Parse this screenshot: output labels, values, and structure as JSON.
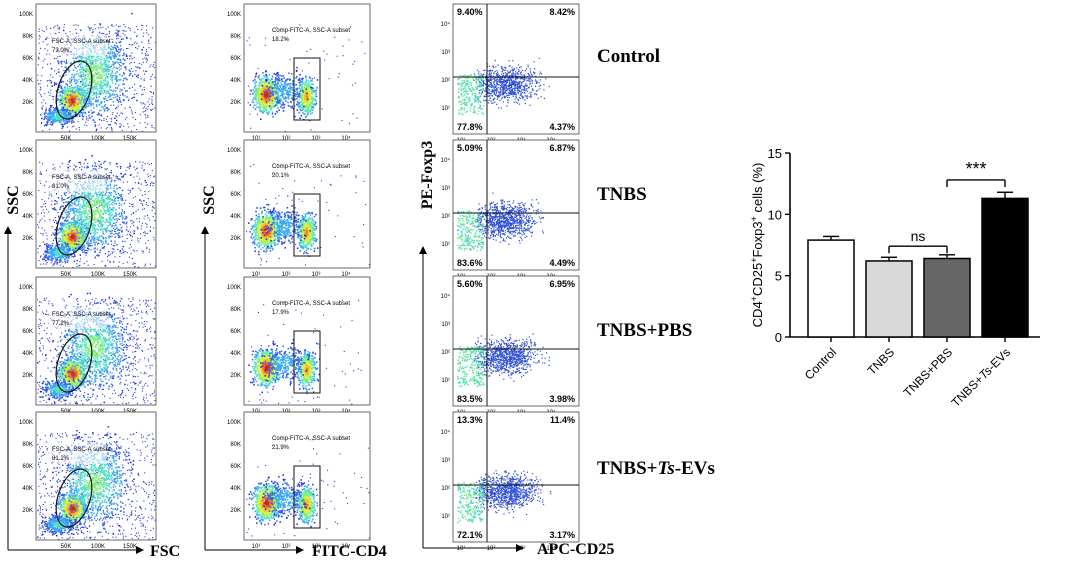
{
  "panels": {
    "col1": {
      "x_label": "FSC",
      "y_label": "SSC",
      "x_ticks": [
        "50K",
        "100K",
        "150K"
      ],
      "y_ticks": [
        "100K",
        "80K",
        "60K",
        "40K",
        "20K"
      ],
      "gates": [
        {
          "name": "FSC-A, SSC-A subset",
          "percent": "73.0%"
        },
        {
          "name": "FSC-A, SSC-A subset",
          "percent": "81.0%"
        },
        {
          "name": "FSC-A, SSC-A subset",
          "percent": "77.2%"
        },
        {
          "name": "FSC-A, SSC-A subset",
          "percent": "81.2%"
        }
      ]
    },
    "col2": {
      "x_label": "FITC-CD4",
      "y_label": "SSC",
      "x_ticks": [
        "10¹",
        "10²",
        "10³",
        "10⁴"
      ],
      "y_ticks": [
        "100K",
        "80K",
        "60K",
        "40K",
        "20K"
      ],
      "gates": [
        {
          "name": "Comp-FITC-A, SSC-A subset",
          "percent": "18.2%"
        },
        {
          "name": "Comp-FITC-A, SSC-A subset",
          "percent": "20.1%"
        },
        {
          "name": "Comp-FITC-A, SSC-A subset",
          "percent": "17.9%"
        },
        {
          "name": "Comp-FITC-A, SSC-A subset",
          "percent": "21.9%"
        }
      ]
    },
    "col3": {
      "x_label": "APC-CD25",
      "y_label": "PE-Foxp3",
      "x_ticks": [
        "10¹",
        "10²",
        "10³",
        "10⁴"
      ],
      "y_ticks": [
        "10⁴",
        "10³",
        "10²",
        "10¹"
      ],
      "quadrants": [
        {
          "group": "Control",
          "ul": "9.40%",
          "ur": "8.42%",
          "ll": "77.8%",
          "lr": "4.37%"
        },
        {
          "group": "TNBS",
          "ul": "5.09%",
          "ur": "6.87%",
          "ll": "83.6%",
          "lr": "4.49%"
        },
        {
          "group": "TNBS+PBS",
          "ul": "5.60%",
          "ur": "6.95%",
          "ll": "83.5%",
          "lr": "3.98%"
        },
        {
          "group": "TNBS+Ts-EVs",
          "ul": "13.3%",
          "ur": "11.4%",
          "ll": "72.1%",
          "lr": "3.17%"
        }
      ]
    }
  },
  "row_labels": [
    {
      "prefix": "Control",
      "italic": "",
      "suffix": ""
    },
    {
      "prefix": "TNBS",
      "italic": "",
      "suffix": ""
    },
    {
      "prefix": "TNBS+PBS",
      "italic": "",
      "suffix": ""
    },
    {
      "prefix": "TNBS+",
      "italic": "Ts",
      "suffix": "-EVs"
    }
  ],
  "chart_data": {
    "type": "bar",
    "categories": [
      "Control",
      "TNBS",
      "TNBS+PBS",
      "TNBS+Ts-EVs"
    ],
    "category_parts": [
      {
        "prefix": "Control",
        "italic": "",
        "suffix": ""
      },
      {
        "prefix": "TNBS",
        "italic": "",
        "suffix": ""
      },
      {
        "prefix": "TNBS+PBS",
        "italic": "",
        "suffix": ""
      },
      {
        "prefix": "TNBS+",
        "italic": "Ts",
        "suffix": "-EVs"
      }
    ],
    "values": [
      7.9,
      6.2,
      6.4,
      11.3
    ],
    "errors": [
      0.3,
      0.3,
      0.3,
      0.5
    ],
    "bar_colors": [
      "#ffffff",
      "#d9d9d9",
      "#666666",
      "#000000"
    ],
    "ylabel": "CD4⁺CD25⁺Foxp3⁺ cells (%)",
    "ylabel_parts": {
      "a": "CD4",
      "b": "CD25",
      "c": "Foxp3",
      "d": " cells (%)",
      "sup": "+"
    },
    "ylim": [
      0,
      15
    ],
    "yticks": [
      0,
      5,
      10,
      15
    ],
    "significance": [
      {
        "between": [
          "TNBS",
          "TNBS+PBS"
        ],
        "label": "ns"
      },
      {
        "between": [
          "TNBS+PBS",
          "TNBS+Ts-EVs"
        ],
        "label": "***"
      }
    ]
  }
}
